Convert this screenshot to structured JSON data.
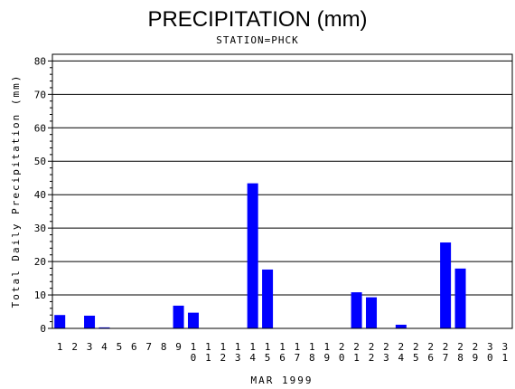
{
  "chart_data": {
    "type": "bar",
    "title": "PRECIPITATION (mm)",
    "subtitle": "STATION=PHCK",
    "xlabel": "MAR 1999",
    "ylabel": "Total Daily Precipitation (mm)",
    "ylim": [
      0,
      82
    ],
    "yticks": [
      0,
      10,
      20,
      30,
      40,
      50,
      60,
      70,
      80
    ],
    "grid": true,
    "bar_color": "#0000ff",
    "categories": [
      "1",
      "2",
      "3",
      "4",
      "5",
      "6",
      "7",
      "8",
      "9",
      "10",
      "11",
      "12",
      "13",
      "14",
      "15",
      "16",
      "17",
      "18",
      "19",
      "20",
      "21",
      "22",
      "23",
      "24",
      "25",
      "26",
      "27",
      "28",
      "29",
      "30",
      "31"
    ],
    "values": [
      4.0,
      0,
      3.8,
      0.3,
      0,
      0,
      0,
      0,
      6.8,
      4.7,
      0,
      0,
      0,
      43.4,
      17.6,
      0,
      0,
      0,
      0,
      0,
      10.8,
      9.3,
      0,
      1.1,
      0,
      0,
      25.7,
      17.9,
      0,
      0,
      0
    ]
  }
}
